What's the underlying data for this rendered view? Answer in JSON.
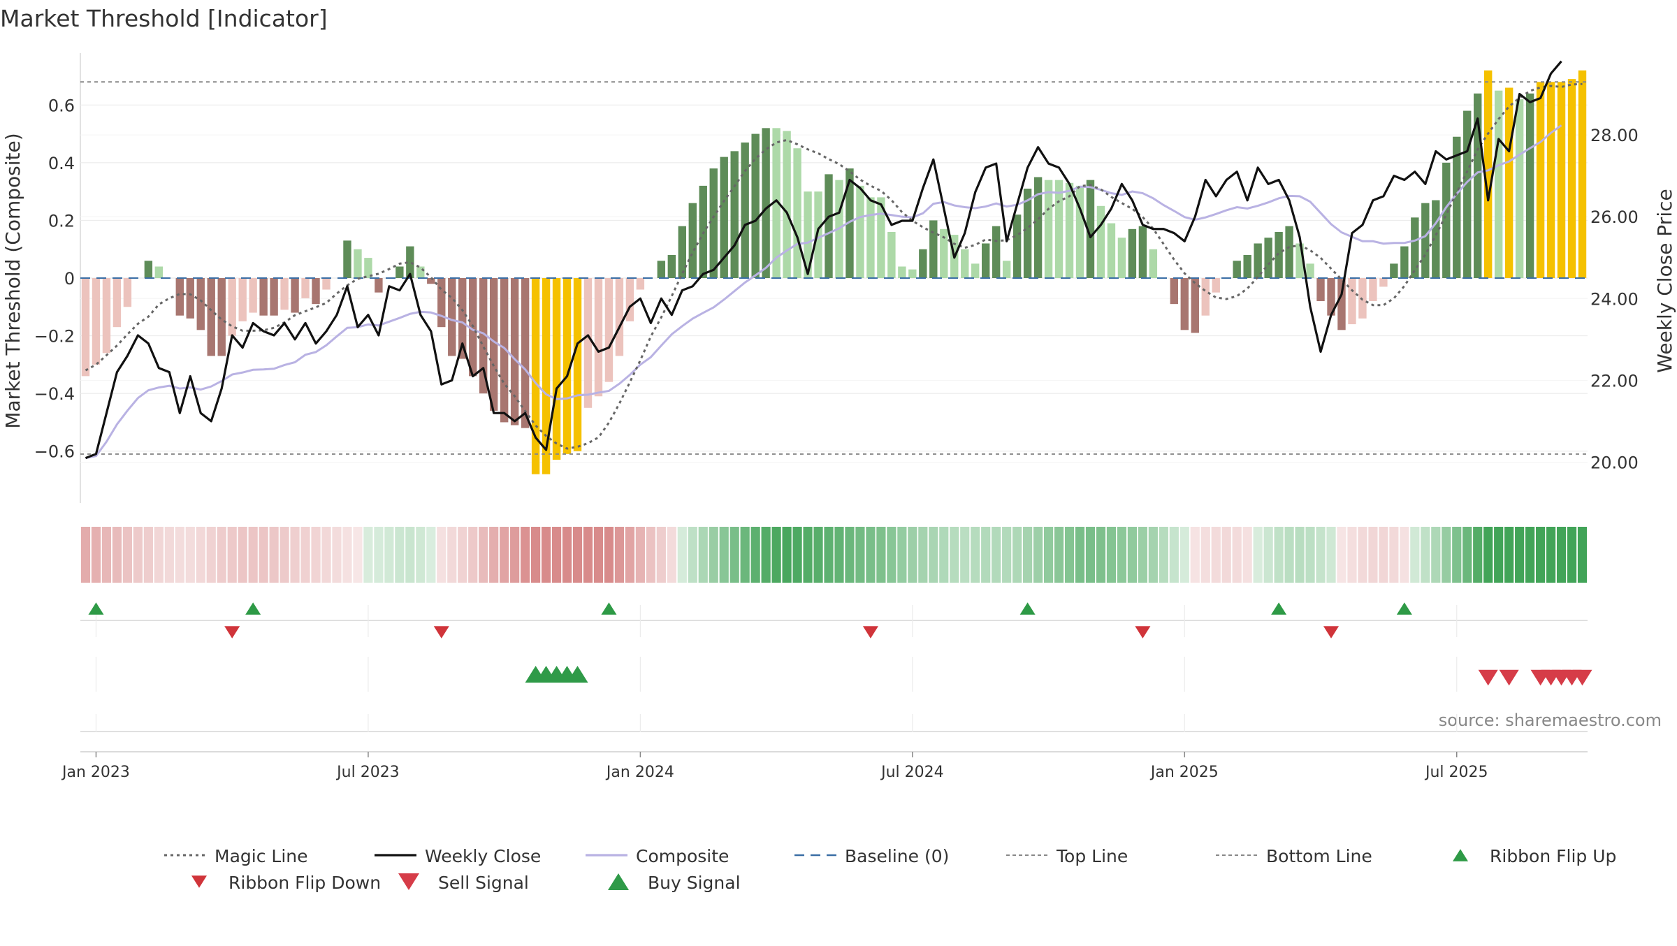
{
  "chart_data": {
    "type": "bar",
    "title": "Market Threshold [Indicator]",
    "ylabel_left": "Market Threshold (Composite)",
    "ylabel_right": "Weekly Close Price",
    "source": "source: sharemaestro.com",
    "ylim_left": [
      -0.78,
      0.78
    ],
    "ylim_right": [
      19.0,
      30.0
    ],
    "yticks_left": [
      "0.6",
      "0.4",
      "0.2",
      "0",
      "−0.2",
      "−0.4",
      "−0.6"
    ],
    "yticks_left_values": [
      0.6,
      0.4,
      0.2,
      0,
      -0.2,
      -0.4,
      -0.6
    ],
    "yticks_right": [
      "28.00",
      "26.00",
      "24.00",
      "22.00",
      "20.00"
    ],
    "yticks_right_values": [
      28,
      26,
      24,
      22,
      20
    ],
    "xticks": [
      "Jan 2023",
      "Jul 2023",
      "Jan 2024",
      "Jul 2024",
      "Jan 2025",
      "Jul 2025"
    ],
    "xticks_week_index": [
      1.5,
      27.5,
      53.5,
      79.5,
      105.5,
      131.5
    ],
    "top_line": 0.68,
    "bottom_line": -0.61,
    "grid": true,
    "legend_position": "bottom",
    "composite_bars": [
      -0.34,
      -0.3,
      -0.26,
      -0.17,
      -0.1,
      0,
      0.06,
      0.04,
      0,
      -0.13,
      -0.14,
      -0.18,
      -0.27,
      -0.27,
      -0.2,
      -0.15,
      -0.12,
      -0.13,
      -0.13,
      -0.11,
      -0.12,
      -0.07,
      -0.09,
      -0.04,
      0,
      0.13,
      0.1,
      0.07,
      -0.05,
      0,
      0.04,
      0.11,
      0.04,
      -0.02,
      -0.17,
      -0.27,
      -0.28,
      -0.34,
      -0.4,
      -0.46,
      -0.5,
      -0.51,
      -0.52,
      -0.68,
      -0.68,
      -0.63,
      -0.61,
      -0.6,
      -0.45,
      -0.41,
      -0.36,
      -0.27,
      -0.15,
      -0.04,
      0,
      0.06,
      0.08,
      0.18,
      0.26,
      0.32,
      0.38,
      0.42,
      0.44,
      0.47,
      0.5,
      0.52,
      0.52,
      0.51,
      0.45,
      0.3,
      0.3,
      0.36,
      0.34,
      0.38,
      0.32,
      0.28,
      0.28,
      0.16,
      0.04,
      0.03,
      0.1,
      0.2,
      0.17,
      0.15,
      0.1,
      0.05,
      0.12,
      0.18,
      0.06,
      0.22,
      0.31,
      0.35,
      0.34,
      0.34,
      0.33,
      0.32,
      0.34,
      0.25,
      0.19,
      0.14,
      0.17,
      0.18,
      0.1,
      0,
      -0.09,
      -0.18,
      -0.19,
      -0.13,
      -0.05,
      0,
      0.06,
      0.08,
      0.12,
      0.14,
      0.16,
      0.18,
      0.12,
      0.05,
      -0.08,
      -0.13,
      -0.18,
      -0.16,
      -0.14,
      -0.08,
      -0.03,
      0.05,
      0.11,
      0.21,
      0.26,
      0.27,
      0.4,
      0.49,
      0.58,
      0.64,
      0.72,
      0.65,
      0.66,
      0.62,
      0.64,
      0.68,
      0.68,
      0.68,
      0.69,
      0.72
    ],
    "weekly_close": [
      20.1,
      20.2,
      21.2,
      22.2,
      22.6,
      23.1,
      22.9,
      22.3,
      22.2,
      21.2,
      22.1,
      21.2,
      21.0,
      21.8,
      23.1,
      22.8,
      23.4,
      23.2,
      23.1,
      23.4,
      23.0,
      23.4,
      22.9,
      23.2,
      23.6,
      24.3,
      23.3,
      23.6,
      23.1,
      24.3,
      24.2,
      24.6,
      23.6,
      23.2,
      21.9,
      22.0,
      22.9,
      22.1,
      22.3,
      21.2,
      21.2,
      21.0,
      21.2,
      20.6,
      20.3,
      21.8,
      22.1,
      22.9,
      23.1,
      22.7,
      22.8,
      23.3,
      23.8,
      24.0,
      23.4,
      24.0,
      23.6,
      24.2,
      24.3,
      24.6,
      24.7,
      25.0,
      25.3,
      25.8,
      25.9,
      26.2,
      26.4,
      26.1,
      25.5,
      24.6,
      25.7,
      26.0,
      26.1,
      26.9,
      26.7,
      26.4,
      26.3,
      25.8,
      25.9,
      25.9,
      26.7,
      27.4,
      26.2,
      25.0,
      25.6,
      26.6,
      27.2,
      27.3,
      25.4,
      26.3,
      27.2,
      27.7,
      27.3,
      27.2,
      26.8,
      26.2,
      25.5,
      25.8,
      26.2,
      26.8,
      26.4,
      25.8,
      25.7,
      25.7,
      25.6,
      25.4,
      26.0,
      26.9,
      26.5,
      26.9,
      27.1,
      26.4,
      27.2,
      26.8,
      26.9,
      26.4,
      25.5,
      23.8,
      22.7,
      23.6,
      24.1,
      25.6,
      25.8,
      26.4,
      26.5,
      27.0,
      26.9,
      27.1,
      26.8,
      27.6,
      27.4,
      27.5,
      27.6,
      28.4,
      26.4,
      27.9,
      27.6,
      29.0,
      28.8,
      28.9,
      29.5,
      29.8
    ],
    "ribbon_flip_up_weeks": [
      1,
      16,
      50,
      90,
      114,
      126
    ],
    "ribbon_flip_down_weeks": [
      14,
      34,
      75,
      101,
      119
    ],
    "buy_signal_weeks": [
      43,
      44,
      45,
      46,
      47
    ],
    "sell_signal_weeks": [
      134,
      136,
      139,
      140,
      141,
      142,
      143
    ],
    "legend": [
      {
        "label": "Magic Line",
        "style": "dotted",
        "color": "#666666"
      },
      {
        "label": "Weekly Close",
        "style": "solid",
        "color": "#111111"
      },
      {
        "label": "Composite",
        "style": "solid",
        "color": "#b9b2e3"
      },
      {
        "label": "Baseline (0)",
        "style": "dashed",
        "color": "#3a6ea5"
      },
      {
        "label": "Top Line",
        "style": "dotted-thin",
        "color": "#888888"
      },
      {
        "label": "Bottom Line",
        "style": "dotted-thin",
        "color": "#888888"
      },
      {
        "label": "Ribbon Flip Up",
        "style": "triangle-up",
        "color": "#2e9a46"
      },
      {
        "label": "Ribbon Flip Down",
        "style": "triangle-down",
        "color": "#d0343a"
      },
      {
        "label": "Sell Signal",
        "style": "triangle-down-big",
        "color": "#d63c48"
      },
      {
        "label": "Buy Signal",
        "style": "triangle-up-big",
        "color": "#2f9a48"
      }
    ],
    "colors": {
      "strong_pos": "#5e8c58",
      "weak_pos": "#add9a8",
      "strong_neg": "#a87670",
      "weak_neg": "#ecc3bd",
      "extreme": "#f5c100",
      "composite_line": "#b9b2e3",
      "magic_line": "#666666",
      "close_line": "#111111",
      "baseline": "#3a6ea5"
    }
  }
}
